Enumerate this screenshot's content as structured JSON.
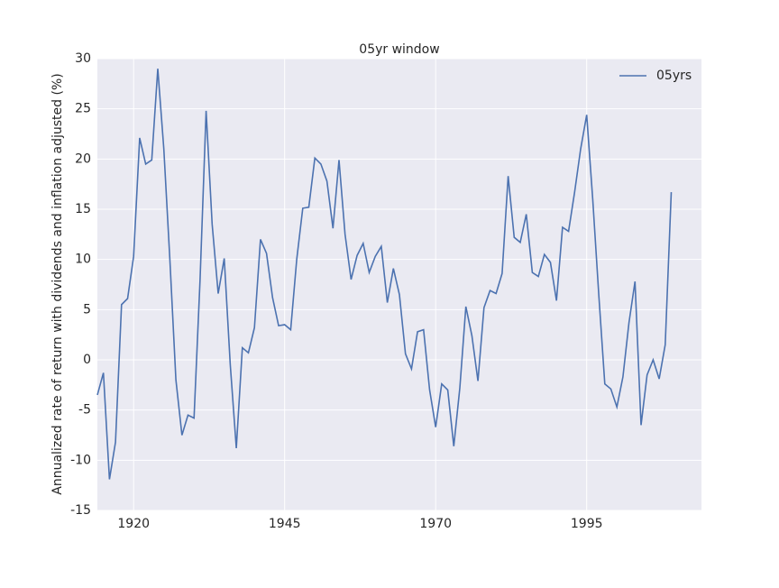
{
  "chart_data": {
    "type": "line",
    "title": "05yr window",
    "y_label": "Annualized rate of return with dividends and inflation adjusted (%)",
    "x": [
      1914,
      1915,
      1916,
      1917,
      1918,
      1919,
      1920,
      1921,
      1922,
      1923,
      1924,
      1925,
      1926,
      1927,
      1928,
      1929,
      1930,
      1931,
      1932,
      1933,
      1934,
      1935,
      1936,
      1937,
      1938,
      1939,
      1940,
      1941,
      1942,
      1943,
      1944,
      1945,
      1946,
      1947,
      1948,
      1949,
      1950,
      1951,
      1952,
      1953,
      1954,
      1955,
      1956,
      1957,
      1958,
      1959,
      1960,
      1961,
      1962,
      1963,
      1964,
      1965,
      1966,
      1967,
      1968,
      1969,
      1970,
      1971,
      1972,
      1973,
      1974,
      1975,
      1976,
      1977,
      1978,
      1979,
      1980,
      1981,
      1982,
      1983,
      1984,
      1985,
      1986,
      1987,
      1988,
      1989,
      1990,
      1991,
      1992,
      1993,
      1994,
      1995,
      1996,
      1997,
      1998,
      1999,
      2000,
      2001,
      2002,
      2003,
      2004,
      2005,
      2006,
      2007,
      2008,
      2009
    ],
    "series": [
      {
        "name": "05yrs",
        "color": "#4c72b0",
        "values": [
          -3.5,
          -1.3,
          -11.9,
          -8.2,
          5.5,
          6.1,
          10.3,
          22.1,
          19.5,
          19.9,
          29.0,
          21.0,
          10.0,
          -2.0,
          -7.5,
          -5.5,
          -5.8,
          8.0,
          24.8,
          13.5,
          6.6,
          10.1,
          -0.5,
          -8.8,
          1.2,
          0.7,
          3.2,
          12.0,
          10.6,
          6.2,
          3.4,
          3.5,
          3.0,
          10.0,
          15.1,
          15.2,
          20.1,
          19.5,
          17.8,
          13.1,
          19.9,
          12.5,
          8.0,
          10.4,
          11.6,
          8.7,
          10.3,
          11.3,
          5.7,
          9.1,
          6.5,
          0.6,
          -0.9,
          2.8,
          3.0,
          -3.0,
          -6.7,
          -2.4,
          -3.0,
          -8.6,
          -2.8,
          5.3,
          2.4,
          -2.1,
          5.2,
          6.9,
          6.6,
          8.6,
          18.3,
          12.2,
          11.7,
          14.5,
          8.7,
          8.3,
          10.5,
          9.7,
          5.9,
          13.2,
          12.8,
          16.7,
          21.0,
          24.4,
          16.0,
          6.5,
          -2.4,
          -2.9,
          -4.7,
          -1.7,
          3.7,
          7.8,
          -6.5,
          -1.5,
          0.0,
          -1.9,
          1.5,
          16.7
        ]
      }
    ],
    "xlim": [
      1914,
      2014
    ],
    "xticks": [
      1920,
      1945,
      1970,
      1995
    ],
    "ylim": [
      -15,
      30
    ],
    "yticks": [
      -15,
      -10,
      -5,
      0,
      5,
      10,
      15,
      20,
      25,
      30
    ],
    "grid": true,
    "legend": "upper right"
  }
}
